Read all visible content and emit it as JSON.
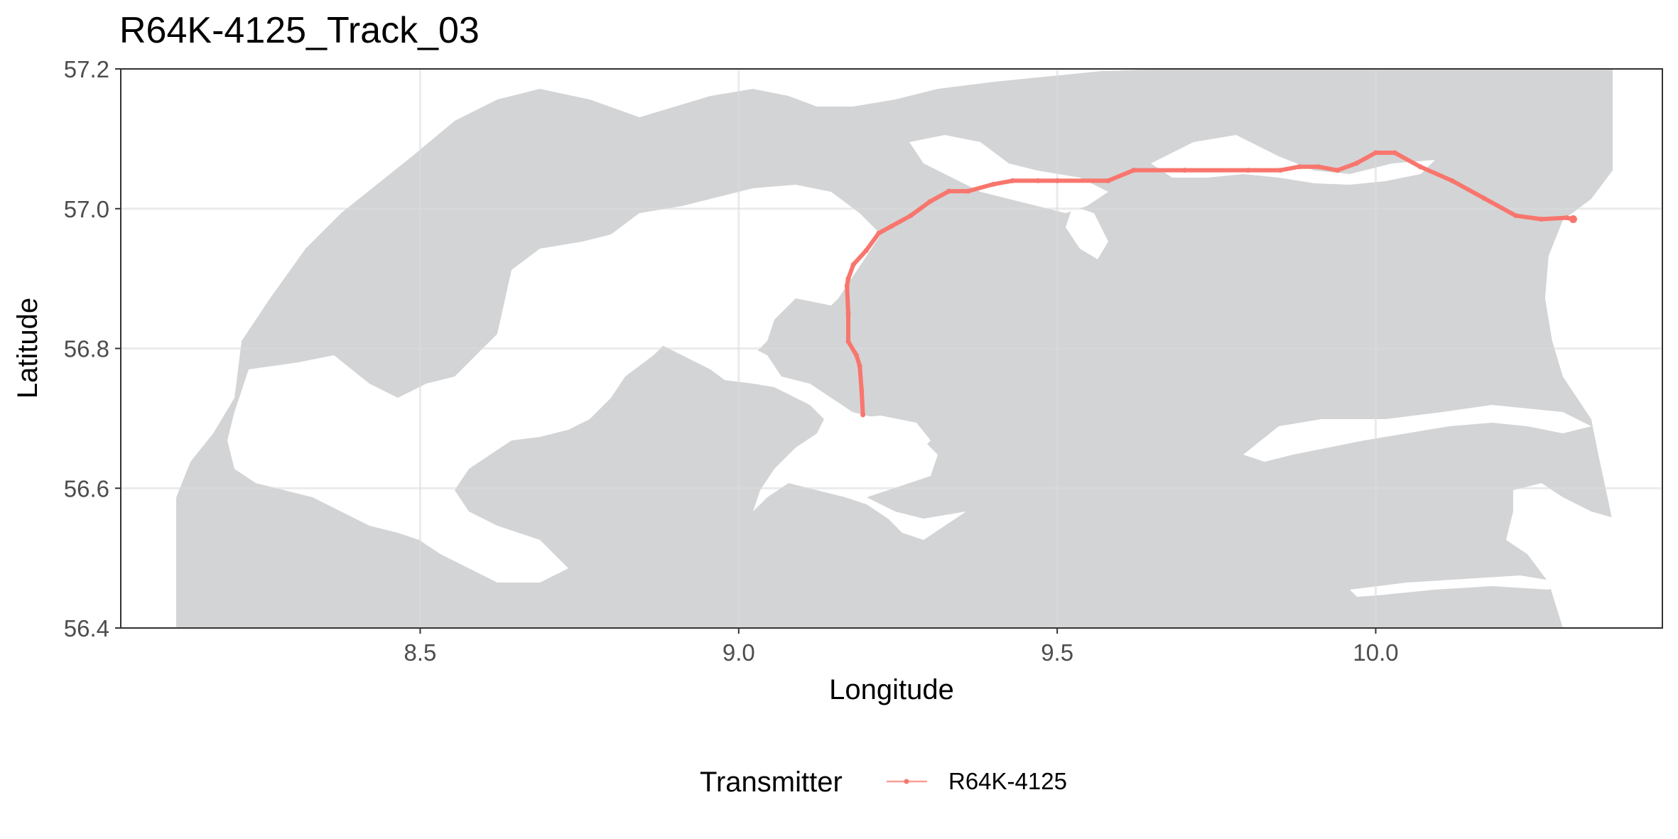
{
  "chart_data": {
    "type": "line",
    "title": "R64K-4125_Track_03",
    "xlabel": "Longitude",
    "ylabel": "Latitude",
    "xlim": [
      8.03,
      10.45
    ],
    "ylim": [
      56.4,
      57.2
    ],
    "x_ticks": [
      8.5,
      9.0,
      9.5,
      10.0
    ],
    "x_tick_labels": [
      "8.5",
      "9.0",
      "9.5",
      "10.0"
    ],
    "y_ticks": [
      56.4,
      56.6,
      56.8,
      57.0,
      57.2
    ],
    "y_tick_labels": [
      "56.4",
      "56.6",
      "56.8",
      "57.0",
      "57.2"
    ],
    "grid": true,
    "legend": {
      "title": "Transmitter",
      "position": "bottom"
    },
    "series": [
      {
        "name": "R64K-4125",
        "color": "#f8766d",
        "x": [
          9.195,
          9.193,
          9.19,
          9.185,
          9.172,
          9.172,
          9.17,
          9.172,
          9.18,
          9.2,
          9.22,
          9.24,
          9.27,
          9.3,
          9.33,
          9.36,
          9.4,
          9.43,
          9.47,
          9.5,
          9.58,
          9.62,
          9.7,
          9.8,
          9.85,
          9.88,
          9.91,
          9.94,
          9.97,
          10.0,
          10.03,
          10.07,
          10.12,
          10.17,
          10.22,
          10.26,
          10.3,
          10.31
        ],
        "y": [
          56.705,
          56.74,
          56.775,
          56.79,
          56.81,
          56.85,
          56.89,
          56.9,
          56.92,
          56.94,
          56.965,
          56.975,
          56.99,
          57.01,
          57.025,
          57.025,
          57.035,
          57.04,
          57.04,
          57.04,
          57.04,
          57.055,
          57.055,
          57.055,
          57.055,
          57.06,
          57.06,
          57.055,
          57.065,
          57.08,
          57.08,
          57.06,
          57.04,
          57.015,
          56.99,
          56.985,
          56.987,
          56.985
        ]
      }
    ]
  },
  "map": {
    "land_color": "#d3d4d6",
    "water_color": "#ffffff",
    "panel_border_color": "#333333",
    "grid_major_color": "#dcdcdc",
    "grid_minor_color": "#ececec"
  }
}
